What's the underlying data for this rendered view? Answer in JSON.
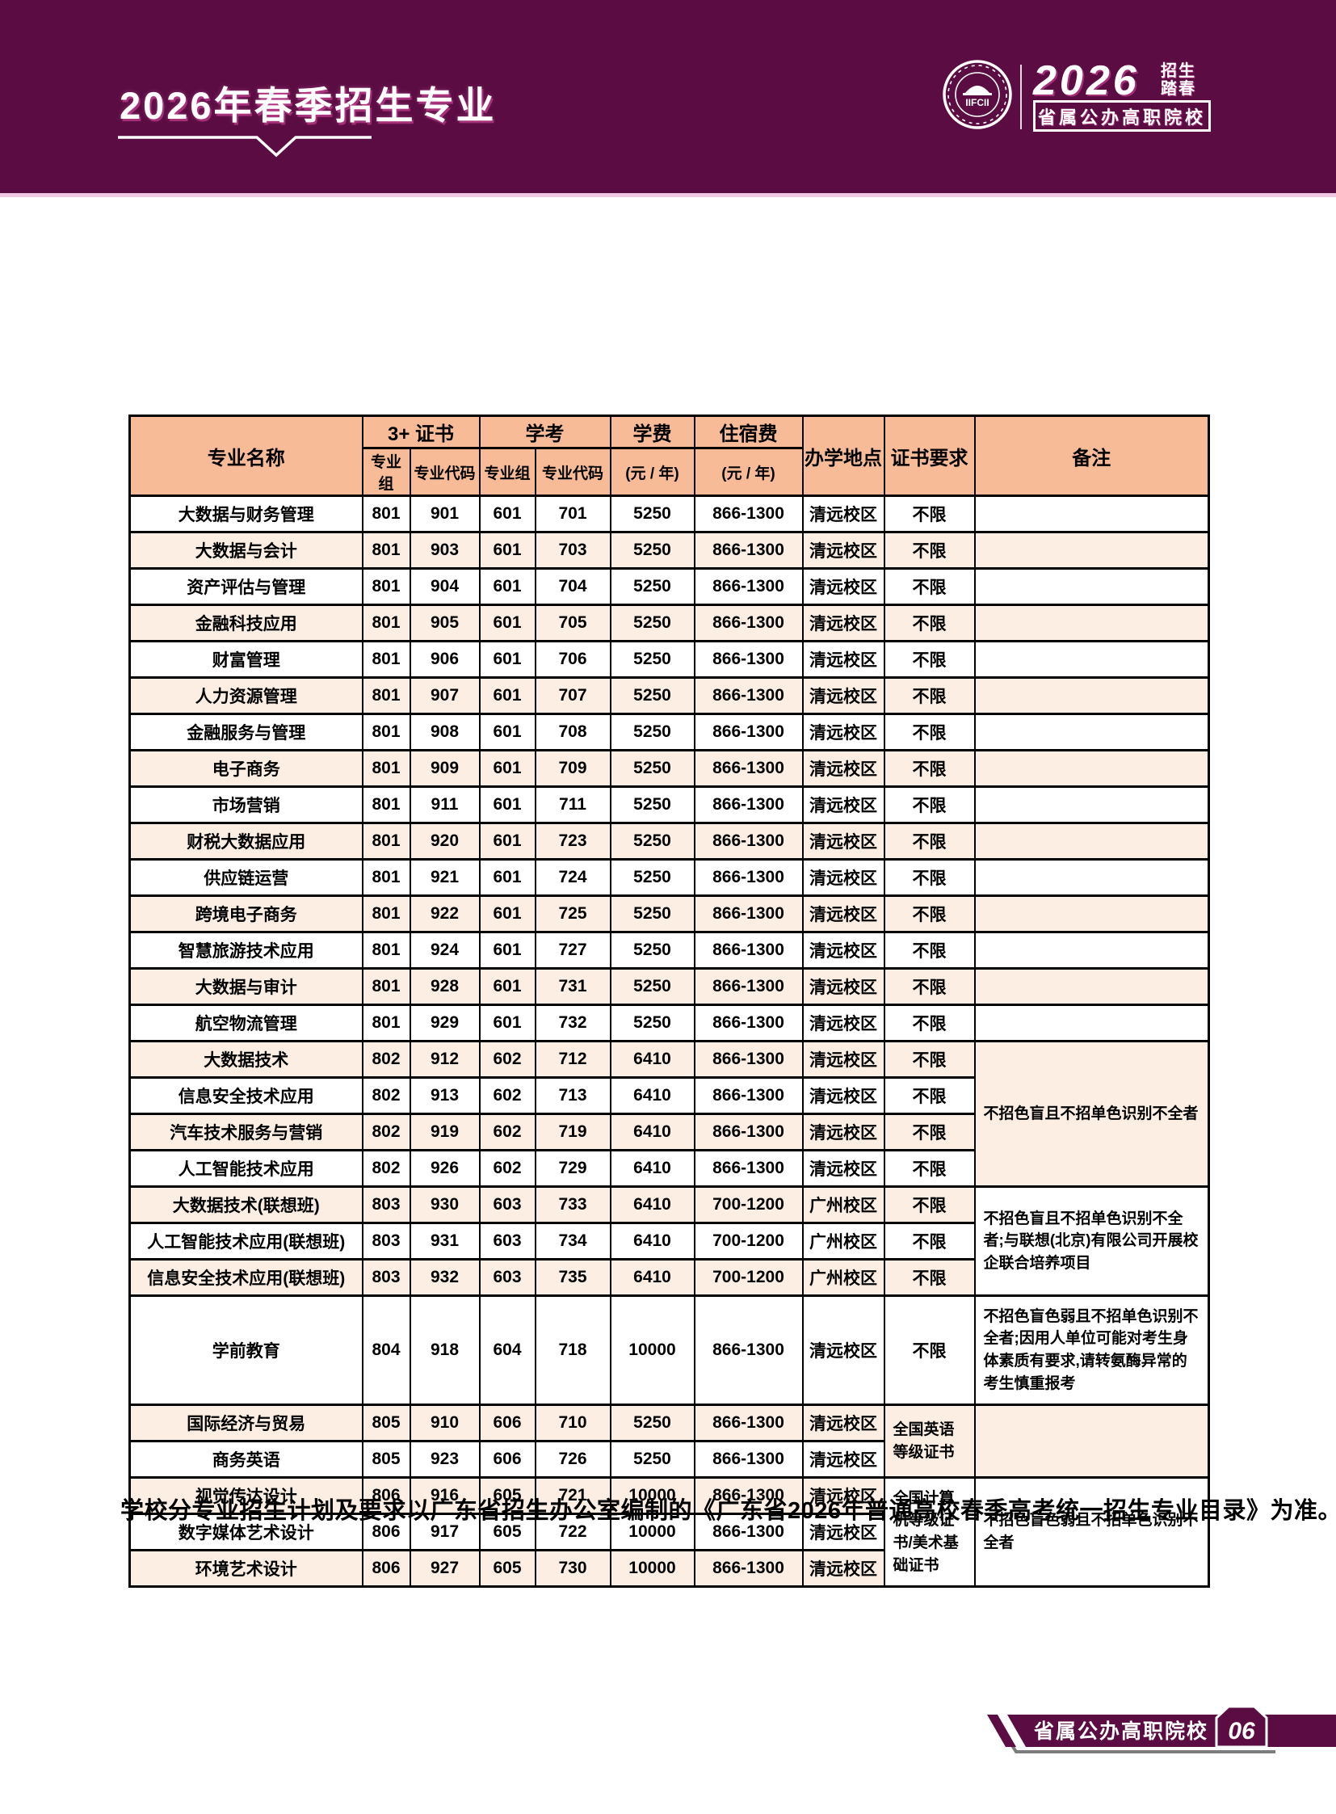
{
  "colors": {
    "banner_purple": "#5b0d43",
    "header_peach": "#f7bb98",
    "row_peach": "#fdeee3",
    "row_white": "#ffffff",
    "border_black": "#000000",
    "pink_accent": "#ef4fa6"
  },
  "banner": {
    "title": "2026年春季招生专业",
    "logo_seal_text": "IIFCII",
    "year": "2026",
    "tag_line1": "招生",
    "tag_line2": "踏春",
    "school_type_box": "省属公办高职院校"
  },
  "table": {
    "header": {
      "major": "专业名称",
      "group_3cert": "3+ 证书",
      "group_xuekao": "学考",
      "sub_group1": "专业组",
      "sub_code1": "专业代码",
      "sub_group2": "专业组",
      "sub_code2": "专业代码",
      "tuition_top": "学费",
      "tuition_sub": "(元 / 年)",
      "fee_top": "住宿费",
      "fee_sub": "(元 / 年)",
      "campus": "办学地点",
      "cert": "证书要求",
      "note": "备注"
    },
    "default_row_height": 40,
    "rows": [
      {
        "name": "大数据与财务管理",
        "g1": "801",
        "c1": "901",
        "g2": "601",
        "c2": "701",
        "tuition": "5250",
        "fee": "866-1300",
        "campus": "清远校区",
        "cert": "不限",
        "note": ""
      },
      {
        "name": "大数据与会计",
        "g1": "801",
        "c1": "903",
        "g2": "601",
        "c2": "703",
        "tuition": "5250",
        "fee": "866-1300",
        "campus": "清远校区",
        "cert": "不限",
        "note": ""
      },
      {
        "name": "资产评估与管理",
        "g1": "801",
        "c1": "904",
        "g2": "601",
        "c2": "704",
        "tuition": "5250",
        "fee": "866-1300",
        "campus": "清远校区",
        "cert": "不限",
        "note": ""
      },
      {
        "name": "金融科技应用",
        "g1": "801",
        "c1": "905",
        "g2": "601",
        "c2": "705",
        "tuition": "5250",
        "fee": "866-1300",
        "campus": "清远校区",
        "cert": "不限",
        "note": ""
      },
      {
        "name": "财富管理",
        "g1": "801",
        "c1": "906",
        "g2": "601",
        "c2": "706",
        "tuition": "5250",
        "fee": "866-1300",
        "campus": "清远校区",
        "cert": "不限",
        "note": ""
      },
      {
        "name": "人力资源管理",
        "g1": "801",
        "c1": "907",
        "g2": "601",
        "c2": "707",
        "tuition": "5250",
        "fee": "866-1300",
        "campus": "清远校区",
        "cert": "不限",
        "note": ""
      },
      {
        "name": "金融服务与管理",
        "g1": "801",
        "c1": "908",
        "g2": "601",
        "c2": "708",
        "tuition": "5250",
        "fee": "866-1300",
        "campus": "清远校区",
        "cert": "不限",
        "note": ""
      },
      {
        "name": "电子商务",
        "g1": "801",
        "c1": "909",
        "g2": "601",
        "c2": "709",
        "tuition": "5250",
        "fee": "866-1300",
        "campus": "清远校区",
        "cert": "不限",
        "note": ""
      },
      {
        "name": "市场营销",
        "g1": "801",
        "c1": "911",
        "g2": "601",
        "c2": "711",
        "tuition": "5250",
        "fee": "866-1300",
        "campus": "清远校区",
        "cert": "不限",
        "note": ""
      },
      {
        "name": "财税大数据应用",
        "g1": "801",
        "c1": "920",
        "g2": "601",
        "c2": "723",
        "tuition": "5250",
        "fee": "866-1300",
        "campus": "清远校区",
        "cert": "不限",
        "note": ""
      },
      {
        "name": "供应链运营",
        "g1": "801",
        "c1": "921",
        "g2": "601",
        "c2": "724",
        "tuition": "5250",
        "fee": "866-1300",
        "campus": "清远校区",
        "cert": "不限",
        "note": ""
      },
      {
        "name": "跨境电子商务",
        "g1": "801",
        "c1": "922",
        "g2": "601",
        "c2": "725",
        "tuition": "5250",
        "fee": "866-1300",
        "campus": "清远校区",
        "cert": "不限",
        "note": ""
      },
      {
        "name": "智慧旅游技术应用",
        "g1": "801",
        "c1": "924",
        "g2": "601",
        "c2": "727",
        "tuition": "5250",
        "fee": "866-1300",
        "campus": "清远校区",
        "cert": "不限",
        "note": ""
      },
      {
        "name": "大数据与审计",
        "g1": "801",
        "c1": "928",
        "g2": "601",
        "c2": "731",
        "tuition": "5250",
        "fee": "866-1300",
        "campus": "清远校区",
        "cert": "不限",
        "note": ""
      },
      {
        "name": "航空物流管理",
        "g1": "801",
        "c1": "929",
        "g2": "601",
        "c2": "732",
        "tuition": "5250",
        "fee": "866-1300",
        "campus": "清远校区",
        "cert": "不限",
        "note": ""
      },
      {
        "name": "大数据技术",
        "g1": "802",
        "c1": "912",
        "g2": "602",
        "c2": "712",
        "tuition": "6410",
        "fee": "866-1300",
        "campus": "清远校区",
        "cert": "不限",
        "note": ""
      },
      {
        "name": "信息安全技术应用",
        "g1": "802",
        "c1": "913",
        "g2": "602",
        "c2": "713",
        "tuition": "6410",
        "fee": "866-1300",
        "campus": "清远校区",
        "cert": "不限",
        "note": ""
      },
      {
        "name": "汽车技术服务与营销",
        "g1": "802",
        "c1": "919",
        "g2": "602",
        "c2": "719",
        "tuition": "6410",
        "fee": "866-1300",
        "campus": "清远校区",
        "cert": "不限",
        "note": ""
      },
      {
        "name": "人工智能技术应用",
        "g1": "802",
        "c1": "926",
        "g2": "602",
        "c2": "729",
        "tuition": "6410",
        "fee": "866-1300",
        "campus": "清远校区",
        "cert": "不限",
        "note": ""
      },
      {
        "name": "大数据技术(联想班)",
        "g1": "803",
        "c1": "930",
        "g2": "603",
        "c2": "733",
        "tuition": "6410",
        "fee": "700-1200",
        "campus": "广州校区",
        "cert": "不限",
        "note": ""
      },
      {
        "name": "人工智能技术应用(联想班)",
        "g1": "803",
        "c1": "931",
        "g2": "603",
        "c2": "734",
        "tuition": "6410",
        "fee": "700-1200",
        "campus": "广州校区",
        "cert": "不限",
        "note": ""
      },
      {
        "name": "信息安全技术应用(联想班)",
        "g1": "803",
        "c1": "932",
        "g2": "603",
        "c2": "735",
        "tuition": "6410",
        "fee": "700-1200",
        "campus": "广州校区",
        "cert": "不限",
        "note": ""
      },
      {
        "name": "学前教育",
        "g1": "804",
        "c1": "918",
        "g2": "604",
        "c2": "718",
        "tuition": "10000",
        "fee": "866-1300",
        "campus": "清远校区",
        "cert": "不限",
        "note": "不招色盲色弱且不招单色识别不全者;因用人单位可能对考生身体素质有要求,请转氨酶异常的考生慎重报考",
        "h": 135
      },
      {
        "name": "国际经济与贸易",
        "g1": "805",
        "c1": "910",
        "g2": "606",
        "c2": "710",
        "tuition": "5250",
        "fee": "866-1300",
        "campus": "清远校区",
        "cert": "",
        "note": ""
      },
      {
        "name": "商务英语",
        "g1": "805",
        "c1": "923",
        "g2": "606",
        "c2": "726",
        "tuition": "5250",
        "fee": "866-1300",
        "campus": "清远校区",
        "cert": "",
        "note": ""
      },
      {
        "name": "视觉传达设计",
        "g1": "806",
        "c1": "916",
        "g2": "605",
        "c2": "721",
        "tuition": "10000",
        "fee": "866-1300",
        "campus": "清远校区",
        "cert": "",
        "note": ""
      },
      {
        "name": "数字媒体艺术设计",
        "g1": "806",
        "c1": "917",
        "g2": "605",
        "c2": "722",
        "tuition": "10000",
        "fee": "866-1300",
        "campus": "清远校区",
        "cert": "",
        "note": ""
      },
      {
        "name": "环境艺术设计",
        "g1": "806",
        "c1": "927",
        "g2": "605",
        "c2": "730",
        "tuition": "10000",
        "fee": "866-1300",
        "campus": "清远校区",
        "cert": "",
        "note": ""
      }
    ],
    "cert_merges": [
      {
        "start": 23,
        "span": 2,
        "text": "全国英语等级证书",
        "bg": "#fdeee3"
      },
      {
        "start": 25,
        "span": 3,
        "text": "全国计算机等级证书/美术基础证书",
        "bg": "#ffffff"
      }
    ],
    "note_merges": [
      {
        "start": 15,
        "span": 4,
        "text": "不招色盲且不招单色识别不全者",
        "bg": "#fdeee3"
      },
      {
        "start": 19,
        "span": 3,
        "text": "不招色盲且不招单色识别不全者;与联想(北京)有限公司开展校企联合培养项目",
        "bg": "#ffffff"
      },
      {
        "start": 23,
        "span": 2,
        "text": "",
        "bg": "#fdeee3"
      },
      {
        "start": 25,
        "span": 3,
        "text": "不招色盲色弱且不招单色识别不全者",
        "bg": "#ffffff"
      }
    ]
  },
  "footnote": "学校分专业招生计划及要求以广东省招生办公室编制的《广东省2026年普通高校春季高考统一招生专业目录》为准。",
  "footer": {
    "bar_label": "省属公办高职院校",
    "page_number": "06"
  }
}
